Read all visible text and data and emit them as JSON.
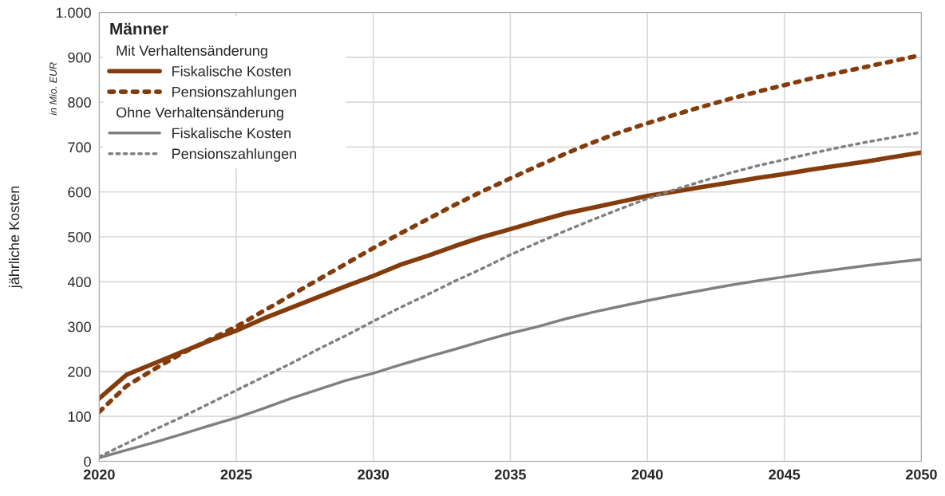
{
  "chart_data": {
    "type": "line",
    "ylabel": "jährliche Kosten",
    "legend_title": "Männer",
    "annotations": [
      "Mit Verhaltensänderung",
      "Ohne Verhaltensänderung",
      "in Mio. EUR"
    ],
    "x": [
      2020,
      2021,
      2022,
      2023,
      2024,
      2025,
      2026,
      2027,
      2028,
      2029,
      2030,
      2031,
      2032,
      2033,
      2034,
      2035,
      2036,
      2037,
      2038,
      2039,
      2040,
      2041,
      2042,
      2043,
      2044,
      2045,
      2046,
      2047,
      2048,
      2049,
      2050
    ],
    "series": [
      {
        "name": "Fiskalische Kosten",
        "color": "#843c0c",
        "line_style": "solid",
        "values": [
          140,
          193,
          218,
          243,
          268,
          291,
          318,
          342,
          366,
          390,
          413,
          438,
          458,
          480,
          500,
          517,
          535,
          552,
          565,
          578,
          591,
          601,
          611,
          621,
          631,
          640,
          650,
          659,
          668,
          678,
          688
        ]
      },
      {
        "name": "Pensionszahlungen",
        "color": "#843c0c",
        "line_style": "dotted",
        "values": [
          110,
          168,
          205,
          240,
          270,
          300,
          335,
          370,
          405,
          440,
          475,
          508,
          540,
          572,
          602,
          630,
          658,
          685,
          710,
          733,
          753,
          772,
          790,
          807,
          823,
          838,
          853,
          866,
          879,
          892,
          905
        ]
      },
      {
        "name": "Fiskalische Kosten",
        "color": "#808080",
        "line_style": "solid",
        "values": [
          8,
          25,
          42,
          60,
          79,
          97,
          118,
          140,
          160,
          180,
          196,
          215,
          233,
          250,
          268,
          285,
          300,
          317,
          332,
          345,
          358,
          370,
          381,
          392,
          402,
          411,
          420,
          428,
          436,
          443,
          450
        ]
      },
      {
        "name": "Pensionszahlungen",
        "color": "#808080",
        "line_style": "dotted",
        "values": [
          10,
          40,
          70,
          98,
          128,
          158,
          188,
          218,
          250,
          280,
          312,
          343,
          372,
          402,
          430,
          460,
          487,
          513,
          538,
          562,
          585,
          605,
          624,
          642,
          658,
          672,
          686,
          699,
          711,
          722,
          733
        ]
      }
    ],
    "xlim": [
      2020,
      2050
    ],
    "xticks": [
      2020,
      2025,
      2030,
      2035,
      2040,
      2045,
      2050
    ],
    "ylim": [
      0,
      1000
    ],
    "yticks": [
      0,
      100,
      200,
      300,
      400,
      500,
      600,
      700,
      800,
      900,
      {
        "value": 1000,
        "label": "1.000"
      }
    ],
    "grid": true,
    "legend": "top left",
    "marker": "none"
  }
}
